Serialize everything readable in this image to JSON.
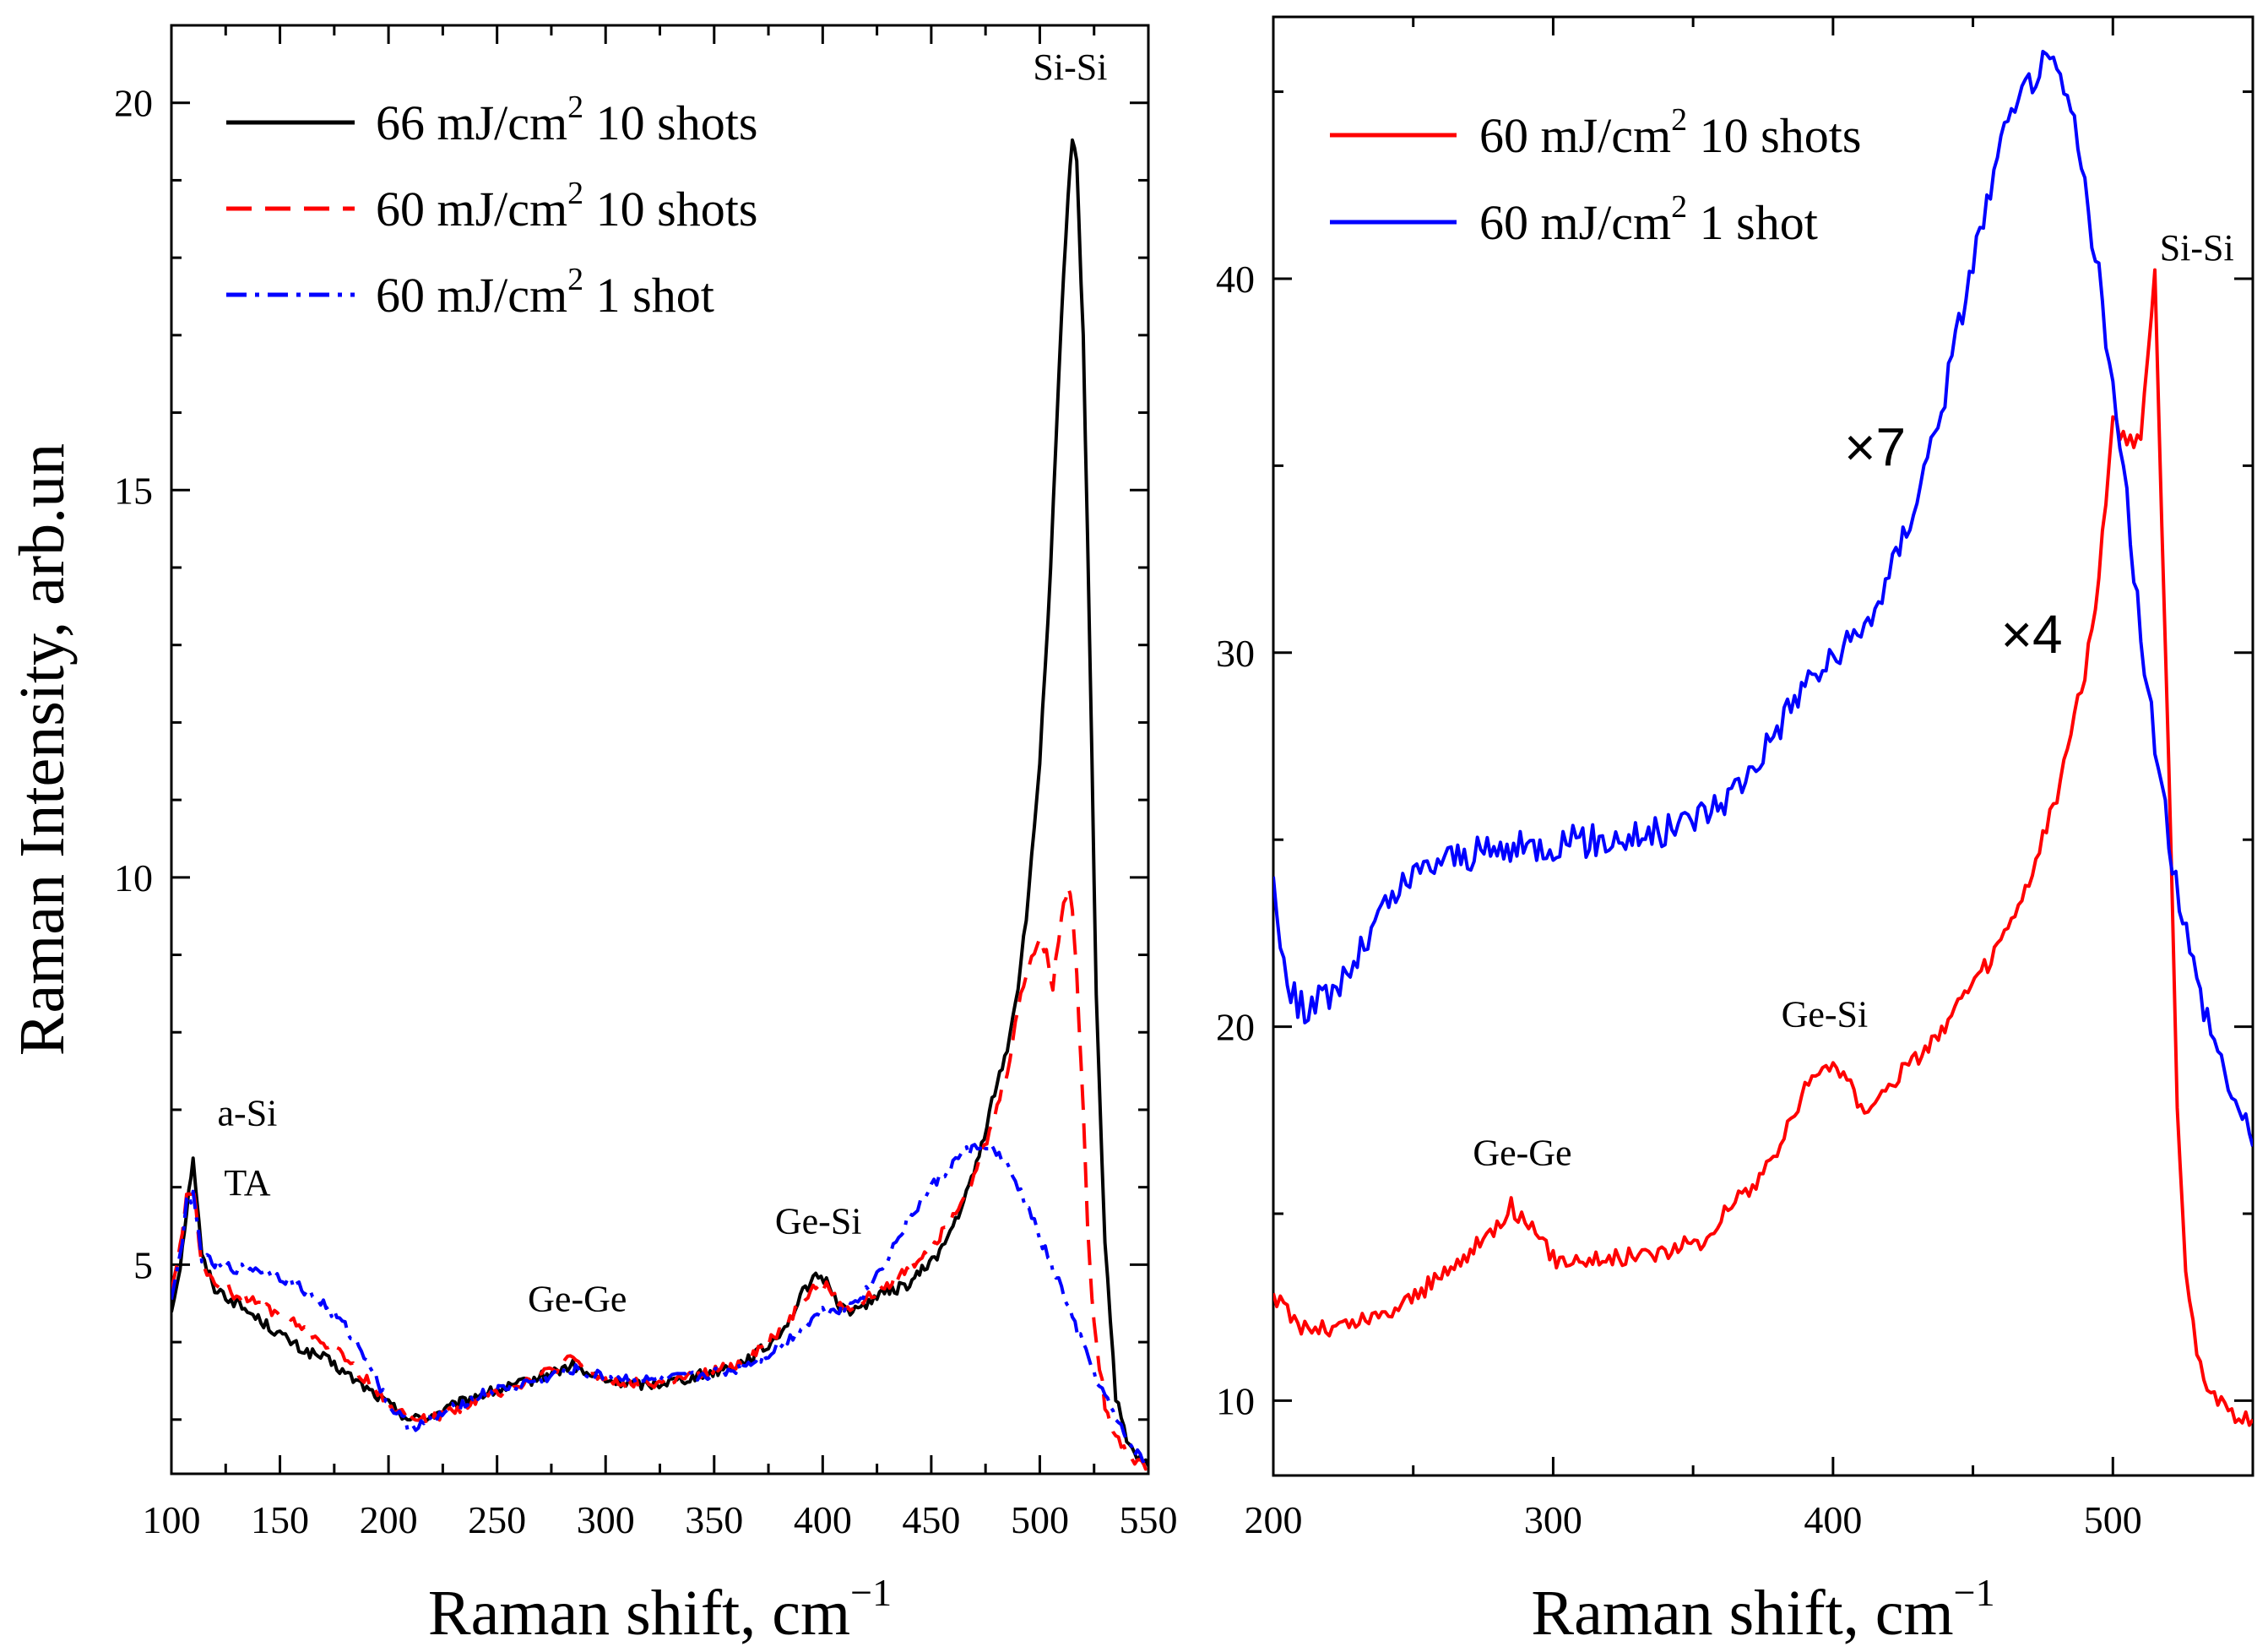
{
  "chart_data": [
    {
      "type": "line",
      "panel": "left",
      "xlabel": "Raman shift, cm",
      "xlabel_sup": "−1",
      "ylabel": "Raman Intensity, arb.un",
      "xlim": [
        100,
        550
      ],
      "ylim": [
        2.3,
        21
      ],
      "xticks": [
        100,
        150,
        200,
        250,
        300,
        350,
        400,
        450,
        500,
        550
      ],
      "yticks": [
        5,
        10,
        15,
        20
      ],
      "legend_position": "top-left",
      "series": [
        {
          "name": "66 mJ/cm2 10 shots",
          "legend_main": "66 mJ/cm",
          "legend_sup": "2",
          "legend_tail": " 10 shots",
          "color": "#000000",
          "style": "solid",
          "x": [
            100,
            104,
            107,
            110,
            114,
            120,
            130,
            140,
            150,
            160,
            170,
            180,
            190,
            200,
            210,
            220,
            240,
            260,
            280,
            285,
            290,
            300,
            320,
            340,
            360,
            375,
            385,
            392,
            398,
            403,
            408,
            415,
            425,
            440,
            455,
            465,
            472,
            478,
            485,
            490,
            495,
            500,
            505,
            510,
            513,
            515,
            517,
            520,
            523,
            526,
            530,
            535,
            540,
            545,
            550
          ],
          "y": [
            4.4,
            5.0,
            5.7,
            6.4,
            5.1,
            4.7,
            4.5,
            4.3,
            4.1,
            3.9,
            3.8,
            3.6,
            3.4,
            3.2,
            3.0,
            3.05,
            3.3,
            3.45,
            3.65,
            3.7,
            3.6,
            3.5,
            3.45,
            3.55,
            3.7,
            3.95,
            4.3,
            4.7,
            4.85,
            4.75,
            4.45,
            4.4,
            4.6,
            4.75,
            5.2,
            5.8,
            6.4,
            7.1,
            7.8,
            8.6,
            9.8,
            11.5,
            14.0,
            17.2,
            18.8,
            19.5,
            19.2,
            17.0,
            13.0,
            8.5,
            5.3,
            3.3,
            2.7,
            2.5,
            2.4
          ]
        },
        {
          "name": "60 mJ/cm2 10 shots",
          "legend_main": "60 mJ/cm",
          "legend_sup": "2",
          "legend_tail": " 10 shots",
          "color": "#ff0000",
          "style": "dashed",
          "x": [
            100,
            104,
            107,
            110,
            114,
            120,
            130,
            140,
            150,
            160,
            170,
            180,
            190,
            200,
            210,
            220,
            240,
            260,
            280,
            285,
            290,
            300,
            320,
            340,
            360,
            375,
            385,
            392,
            398,
            403,
            408,
            415,
            425,
            440,
            455,
            465,
            472,
            478,
            485,
            490,
            495,
            500,
            503,
            506,
            510,
            513,
            515,
            517,
            520,
            522,
            525,
            530,
            535,
            540,
            545,
            550
          ],
          "y": [
            4.7,
            5.2,
            5.9,
            6.0,
            5.0,
            4.8,
            4.6,
            4.5,
            4.35,
            4.2,
            4.0,
            3.8,
            3.5,
            3.2,
            3.0,
            3.0,
            3.25,
            3.45,
            3.7,
            3.8,
            3.65,
            3.5,
            3.45,
            3.55,
            3.7,
            4.0,
            4.3,
            4.6,
            4.75,
            4.7,
            4.45,
            4.45,
            4.65,
            4.95,
            5.4,
            5.9,
            6.3,
            6.8,
            7.5,
            8.3,
            8.9,
            9.2,
            9.0,
            8.6,
            9.5,
            9.9,
            9.6,
            8.8,
            7.0,
            5.5,
            4.2,
            3.2,
            2.8,
            2.6,
            2.45,
            2.4
          ]
        },
        {
          "name": "60 mJ/cm2 1 shot",
          "legend_main": "60 mJ/cm",
          "legend_sup": "2",
          "legend_tail": " 1 shot",
          "color": "#0000ff",
          "style": "dashdot",
          "x": [
            100,
            104,
            107,
            110,
            114,
            120,
            130,
            140,
            150,
            160,
            170,
            180,
            190,
            200,
            210,
            220,
            240,
            260,
            280,
            285,
            290,
            300,
            320,
            340,
            360,
            375,
            385,
            395,
            400,
            410,
            420,
            430,
            440,
            450,
            460,
            465,
            470,
            475,
            480,
            485,
            490,
            495,
            500,
            505,
            510,
            515,
            520,
            525,
            530,
            535,
            540,
            545,
            550
          ],
          "y": [
            4.6,
            5.1,
            5.8,
            5.9,
            5.1,
            5.0,
            4.95,
            4.95,
            4.85,
            4.7,
            4.5,
            4.2,
            3.8,
            3.2,
            2.9,
            3.0,
            3.3,
            3.45,
            3.6,
            3.65,
            3.6,
            3.55,
            3.5,
            3.55,
            3.65,
            3.85,
            4.05,
            4.3,
            4.4,
            4.45,
            4.65,
            5.1,
            5.6,
            6.0,
            6.3,
            6.45,
            6.5,
            6.55,
            6.45,
            6.25,
            6.0,
            5.7,
            5.35,
            5.0,
            4.7,
            4.3,
            3.95,
            3.6,
            3.3,
            3.0,
            2.75,
            2.55,
            2.45
          ]
        }
      ],
      "annotations": [
        {
          "text": "Si-Si",
          "x": 514,
          "y": 20.3
        },
        {
          "text": "a-Si",
          "x": 135,
          "y": 6.8
        },
        {
          "text": "TA",
          "x": 135,
          "y": 5.9
        },
        {
          "text": "Ge-Ge",
          "x": 287,
          "y": 4.4
        },
        {
          "text": "Ge-Si",
          "x": 398,
          "y": 5.4
        }
      ]
    },
    {
      "type": "line",
      "panel": "right",
      "xlabel": "Raman shift, cm",
      "xlabel_sup": "−1",
      "ylabel": "",
      "xlim": [
        200,
        550
      ],
      "ylim": [
        8,
        47
      ],
      "xticks": [
        200,
        300,
        400,
        500
      ],
      "yticks": [
        10,
        20,
        30,
        40
      ],
      "legend_position": "top-left",
      "series": [
        {
          "name": "60 mJ/cm2 10 shots",
          "legend_main": "60 mJ/cm",
          "legend_sup": "2",
          "legend_tail": " 10 shots",
          "color": "#ff0000",
          "style": "solid",
          "x": [
            200,
            210,
            220,
            240,
            260,
            275,
            285,
            290,
            300,
            320,
            340,
            355,
            360,
            370,
            380,
            390,
            395,
            400,
            405,
            410,
            420,
            440,
            460,
            470,
            480,
            490,
            495,
            500,
            505,
            510,
            515,
            520,
            523,
            526,
            530,
            535,
            540,
            545,
            550
          ],
          "y": [
            12.8,
            12.0,
            11.9,
            12.3,
            13.3,
            14.3,
            15.2,
            14.8,
            13.8,
            13.8,
            14.0,
            14.3,
            15.0,
            15.6,
            16.7,
            18.3,
            18.8,
            19.1,
            18.6,
            17.8,
            18.4,
            20.0,
            22.2,
            23.8,
            26.2,
            29.5,
            32.0,
            36.2,
            35.5,
            35.8,
            40.0,
            27.0,
            18.0,
            13.5,
            11.2,
            10.3,
            9.8,
            9.6,
            9.5
          ]
        },
        {
          "name": "60 mJ/cm2 1 shot",
          "legend_main": "60 mJ/cm",
          "legend_sup": "2",
          "legend_tail": " 1 shot",
          "color": "#0000ff",
          "style": "solid",
          "x": [
            200,
            205,
            210,
            220,
            230,
            240,
            250,
            260,
            280,
            300,
            320,
            340,
            360,
            370,
            380,
            390,
            400,
            410,
            420,
            430,
            440,
            450,
            460,
            470,
            475,
            480,
            485,
            490,
            495,
            500,
            505,
            510,
            515,
            520,
            525,
            530,
            535,
            540,
            545,
            550
          ],
          "y": [
            24.0,
            21.0,
            20.5,
            20.8,
            21.8,
            23.2,
            24.0,
            24.5,
            24.7,
            24.9,
            25.0,
            25.2,
            26.0,
            26.8,
            28.0,
            29.2,
            29.8,
            30.5,
            32.0,
            34.2,
            37.0,
            40.5,
            43.5,
            45.3,
            45.7,
            45.5,
            44.5,
            42.5,
            40.0,
            37.0,
            34.0,
            30.5,
            27.5,
            25.0,
            23.0,
            21.2,
            20.0,
            18.8,
            17.8,
            16.8
          ]
        }
      ],
      "annotations": [
        {
          "text": "Si-Si",
          "x": 530,
          "y": 40.5
        },
        {
          "text": "Ge-Si",
          "x": 397,
          "y": 20.0
        },
        {
          "text": "Ge-Ge",
          "x": 289,
          "y": 16.3
        },
        {
          "text": "×7",
          "x": 415,
          "y": 35.0,
          "big": true
        },
        {
          "text": "×4",
          "x": 471,
          "y": 30.0,
          "big": true
        }
      ]
    }
  ]
}
